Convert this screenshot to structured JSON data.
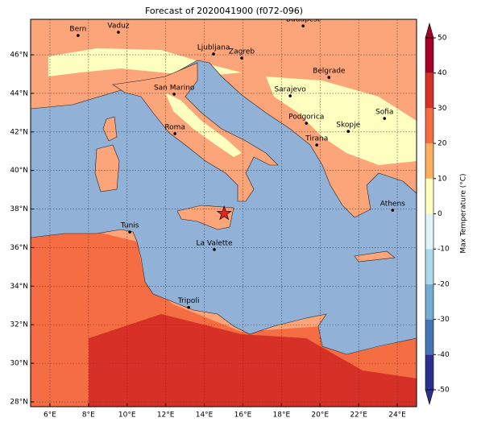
{
  "title": "Forecast of 2020041900 (f072-096)",
  "map": {
    "lonlim": [
      5,
      25
    ],
    "latlim": [
      27.75,
      47.84
    ],
    "grid": true,
    "xticks": [
      {
        "value": 6,
        "label": "6°E"
      },
      {
        "value": 8,
        "label": "8°E"
      },
      {
        "value": 10,
        "label": "10°E"
      },
      {
        "value": 12,
        "label": "12°E"
      },
      {
        "value": 14,
        "label": "14°E"
      },
      {
        "value": 16,
        "label": "16°E"
      },
      {
        "value": 18,
        "label": "18°E"
      },
      {
        "value": 20,
        "label": "20°E"
      },
      {
        "value": 22,
        "label": "22°E"
      },
      {
        "value": 24,
        "label": "24°E"
      }
    ],
    "yticks": [
      {
        "value": 28,
        "label": "28°N"
      },
      {
        "value": 30,
        "label": "30°N"
      },
      {
        "value": 32,
        "label": "32°N"
      },
      {
        "value": 34,
        "label": "34°N"
      },
      {
        "value": 36,
        "label": "36°N"
      },
      {
        "value": 38,
        "label": "38°N"
      },
      {
        "value": 40,
        "label": "40°N"
      },
      {
        "value": 42,
        "label": "42°N"
      },
      {
        "value": 44,
        "label": "44°N"
      },
      {
        "value": 46,
        "label": "46°N"
      }
    ],
    "cities": [
      {
        "name": "Bern",
        "lon": 7.46,
        "lat": 47.0
      },
      {
        "name": "Vaduz",
        "lon": 9.55,
        "lat": 47.17
      },
      {
        "name": "Budapest",
        "lon": 19.12,
        "lat": 47.5
      },
      {
        "name": "Ljubljana",
        "lon": 14.48,
        "lat": 46.04
      },
      {
        "name": "Zagreb",
        "lon": 15.94,
        "lat": 45.83
      },
      {
        "name": "Belgrade",
        "lon": 20.46,
        "lat": 44.83
      },
      {
        "name": "San Marino",
        "lon": 12.44,
        "lat": 43.96
      },
      {
        "name": "Sarajevo",
        "lon": 18.45,
        "lat": 43.87
      },
      {
        "name": "Sofia",
        "lon": 23.34,
        "lat": 42.7
      },
      {
        "name": "Roma",
        "lon": 12.48,
        "lat": 41.91
      },
      {
        "name": "Podgorica",
        "lon": 19.29,
        "lat": 42.45
      },
      {
        "name": "Skopje",
        "lon": 21.46,
        "lat": 42.03
      },
      {
        "name": "Tirana",
        "lon": 19.83,
        "lat": 41.32
      },
      {
        "name": "Athens",
        "lon": 23.76,
        "lat": 37.94
      },
      {
        "name": "Tunis",
        "lon": 10.14,
        "lat": 36.81
      },
      {
        "name": "La Valette",
        "lon": 14.52,
        "lat": 35.9
      },
      {
        "name": "Tripoli",
        "lon": 13.19,
        "lat": 32.9
      }
    ],
    "marker": {
      "lon": 15.03,
      "lat": 37.77,
      "color": "#e8241c"
    }
  },
  "colorbar": {
    "label": "Max Temperature (°C)",
    "ticks": [
      -50,
      -40,
      -30,
      -20,
      -10,
      0,
      10,
      20,
      30,
      40,
      50
    ],
    "colors": [
      "#2b2f8f",
      "#4575b4",
      "#74add1",
      "#abd9e9",
      "#e0f3f8",
      "#ffffbf",
      "#fdae61",
      "#f46d43",
      "#d73027",
      "#a50026"
    ]
  }
}
